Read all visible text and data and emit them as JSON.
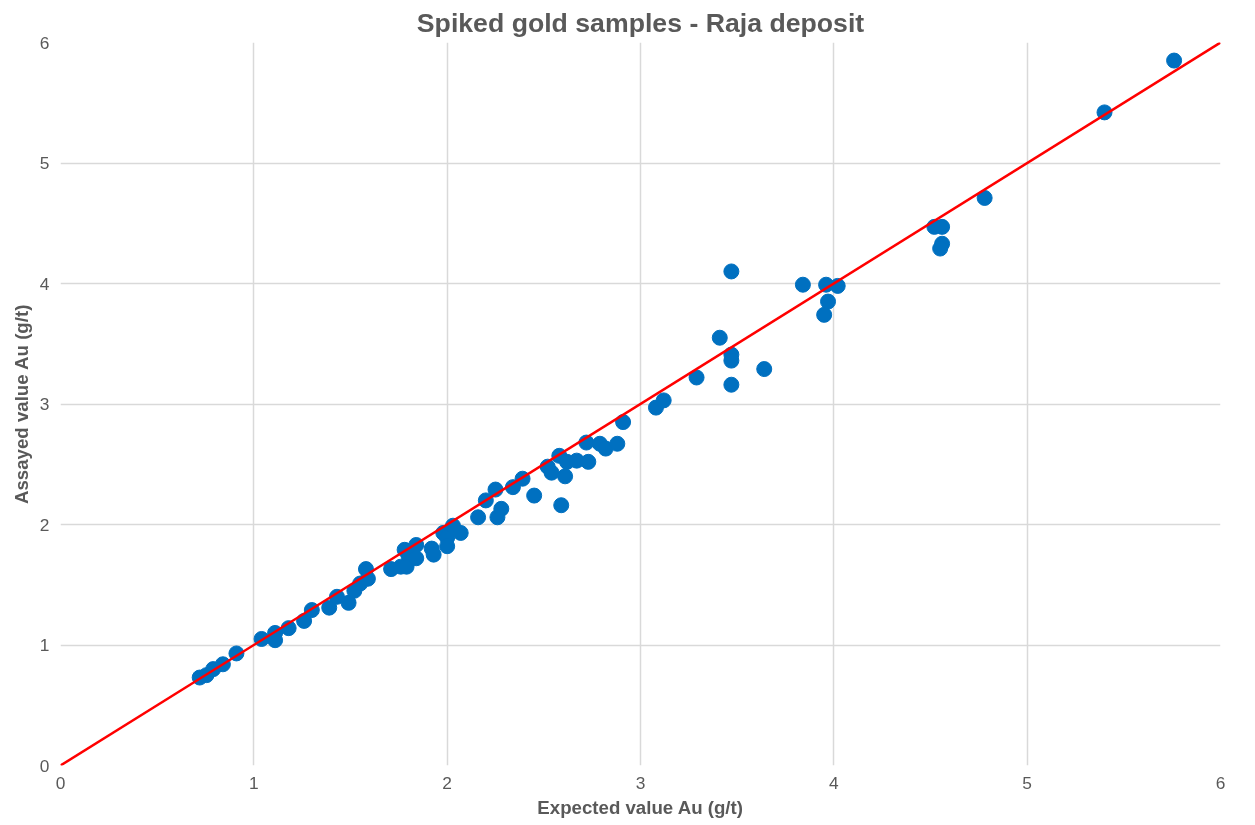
{
  "chart_data": {
    "type": "scatter",
    "title": "Spiked gold samples - Raja deposit",
    "xlabel": "Expected value Au (g/t)",
    "ylabel": "Assayed value Au (g/t)",
    "xlim": [
      0,
      6
    ],
    "ylim": [
      0,
      6
    ],
    "xticks": [
      0,
      1,
      2,
      3,
      4,
      5,
      6
    ],
    "yticks": [
      0,
      1,
      2,
      3,
      4,
      5,
      6
    ],
    "grid": true,
    "series": [
      {
        "marker": "circle",
        "color": "#0070c0",
        "x": [
          0.72,
          0.755,
          0.79,
          0.84,
          0.91,
          1.04,
          1.11,
          1.11,
          1.18,
          1.26,
          1.3,
          1.39,
          1.43,
          1.49,
          1.52,
          1.55,
          1.58,
          1.59,
          1.71,
          1.76,
          1.78,
          1.8,
          1.79,
          1.84,
          1.84,
          1.92,
          1.93,
          1.98,
          2.0,
          2.0,
          2.03,
          2.07,
          2.16,
          2.2,
          2.25,
          2.26,
          2.28,
          2.34,
          2.39,
          2.45,
          2.52,
          2.54,
          2.58,
          2.59,
          2.62,
          2.61,
          2.67,
          2.72,
          2.73,
          2.79,
          2.82,
          2.88,
          2.91,
          3.08,
          3.12,
          3.29,
          3.41,
          3.47,
          3.47,
          3.47,
          3.47,
          3.64,
          3.84,
          3.96,
          3.97,
          3.95,
          4.02,
          4.52,
          4.56,
          4.56,
          4.55,
          4.78,
          5.4,
          5.76
        ],
        "values": [
          0.73,
          0.75,
          0.8,
          0.84,
          0.93,
          1.05,
          1.1,
          1.04,
          1.14,
          1.2,
          1.29,
          1.31,
          1.4,
          1.35,
          1.45,
          1.51,
          1.63,
          1.55,
          1.63,
          1.65,
          1.79,
          1.74,
          1.65,
          1.83,
          1.72,
          1.8,
          1.75,
          1.93,
          1.89,
          1.82,
          1.99,
          1.93,
          2.06,
          2.2,
          2.29,
          2.06,
          2.13,
          2.31,
          2.38,
          2.24,
          2.48,
          2.43,
          2.57,
          2.16,
          2.52,
          2.4,
          2.53,
          2.68,
          2.52,
          2.67,
          2.63,
          2.67,
          2.85,
          2.97,
          3.03,
          3.22,
          3.55,
          4.1,
          3.41,
          3.36,
          3.16,
          3.29,
          3.99,
          3.99,
          3.85,
          3.74,
          3.98,
          4.47,
          4.47,
          4.33,
          4.29,
          4.71,
          5.42,
          5.85
        ]
      },
      {
        "type": "line",
        "color": "#ff0000",
        "line_style": "solid",
        "x": [
          0,
          6
        ],
        "values": [
          0,
          6
        ]
      }
    ]
  }
}
